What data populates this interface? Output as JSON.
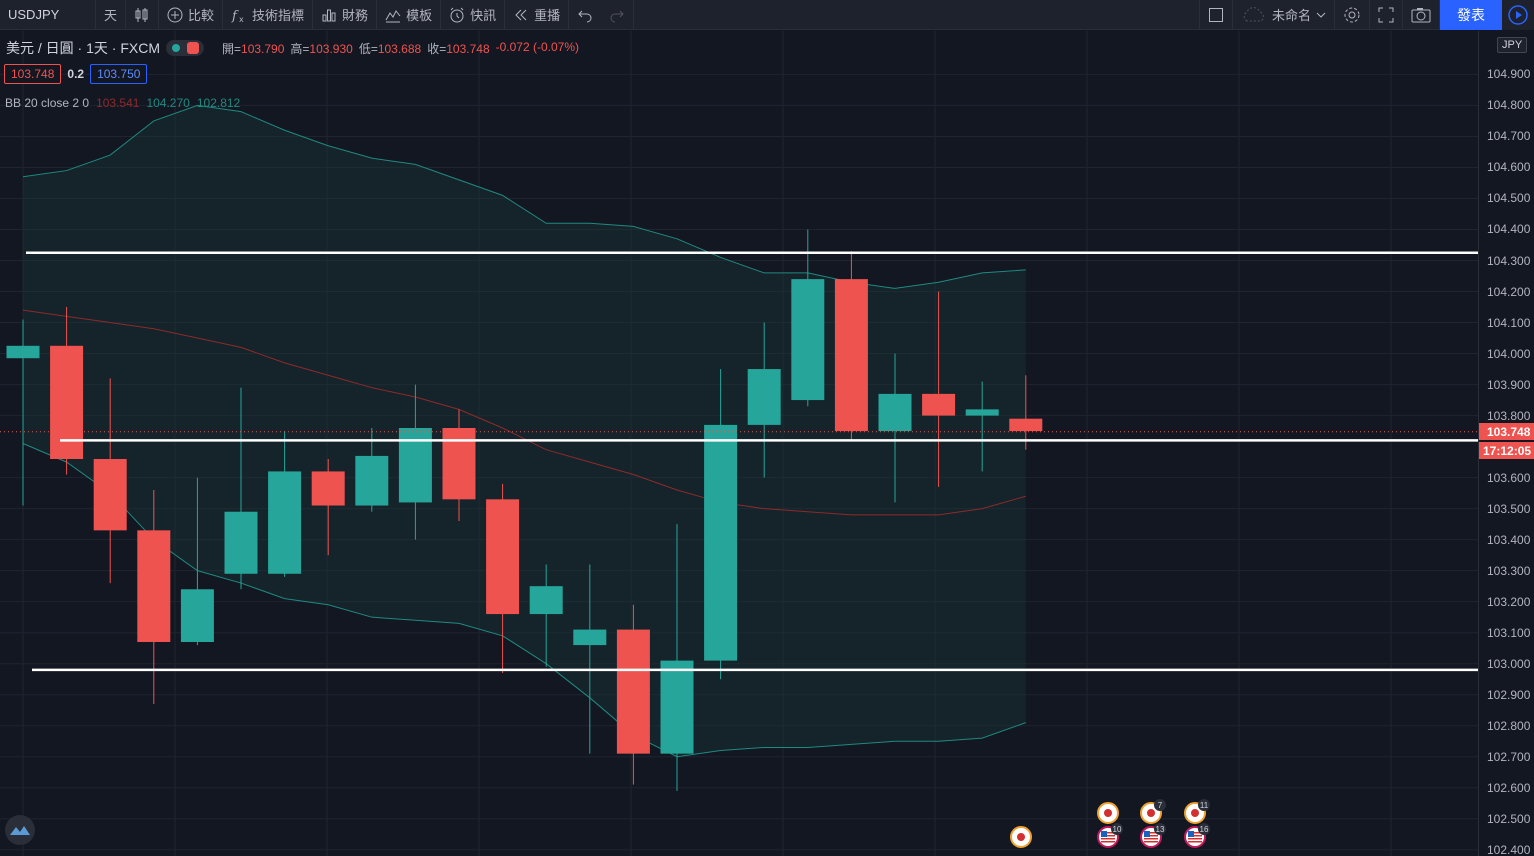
{
  "toolbar": {
    "symbol": "USDJPY",
    "interval": "天",
    "compare": "比較",
    "indicators": "技術指標",
    "financials": "財務",
    "templates": "模板",
    "alerts": "快訊",
    "replay": "重播",
    "layout_name": "未命名",
    "publish": "發表"
  },
  "legend": {
    "title": "美元 / 日圓 · 1天 · FXCM",
    "ohlc": [
      {
        "label": "開=",
        "value": "103.790"
      },
      {
        "label": "高=",
        "value": "103.930"
      },
      {
        "label": "低=",
        "value": "103.688"
      },
      {
        "label": "收=",
        "value": "103.748"
      }
    ],
    "change": "-0.072 (-0.07%)",
    "sell": "103.748",
    "spread": "0.2",
    "buy": "103.750",
    "indicator_name": "BB 20 close 2 0",
    "bb_basis": "103.541",
    "bb_upper": "104.270",
    "bb_lower": "102.812"
  },
  "price_axis": {
    "currency": "JPY",
    "current_price": "103.748",
    "countdown": "17:12:05",
    "ticks": [
      "104.900",
      "104.800",
      "104.700",
      "104.600",
      "104.500",
      "104.400",
      "104.300",
      "104.200",
      "104.100",
      "104.000",
      "103.900",
      "103.800",
      "103.600",
      "103.500",
      "103.400",
      "103.300",
      "103.200",
      "103.100",
      "103.000",
      "102.900",
      "102.800",
      "102.700",
      "102.600",
      "102.500",
      "102.400"
    ]
  },
  "colors": {
    "up": "#26a69a",
    "down": "#ef5350",
    "background": "#131722",
    "grid": "#1f2430",
    "bb_band": "#1f8a80",
    "bb_basis": "#8c2b2b",
    "hline": "#ffffff"
  },
  "chart_data": {
    "type": "candlestick",
    "ylim": [
      102.38,
      105.04
    ],
    "candles": [
      {
        "o": 103.985,
        "h": 104.11,
        "l": 103.51,
        "c": 104.025
      },
      {
        "o": 104.025,
        "h": 104.15,
        "l": 103.61,
        "c": 103.66
      },
      {
        "o": 103.66,
        "h": 103.92,
        "l": 103.26,
        "c": 103.43
      },
      {
        "o": 103.43,
        "h": 103.56,
        "l": 102.87,
        "c": 103.07
      },
      {
        "o": 103.07,
        "h": 103.6,
        "l": 103.06,
        "c": 103.24
      },
      {
        "o": 103.29,
        "h": 103.89,
        "l": 103.24,
        "c": 103.49
      },
      {
        "o": 103.29,
        "h": 103.75,
        "l": 103.28,
        "c": 103.62
      },
      {
        "o": 103.62,
        "h": 103.66,
        "l": 103.35,
        "c": 103.51
      },
      {
        "o": 103.51,
        "h": 103.76,
        "l": 103.49,
        "c": 103.67
      },
      {
        "o": 103.52,
        "h": 103.9,
        "l": 103.4,
        "c": 103.76
      },
      {
        "o": 103.76,
        "h": 103.82,
        "l": 103.46,
        "c": 103.53
      },
      {
        "o": 103.53,
        "h": 103.58,
        "l": 102.97,
        "c": 103.16
      },
      {
        "o": 103.16,
        "h": 103.32,
        "l": 102.99,
        "c": 103.25
      },
      {
        "o": 103.06,
        "h": 103.32,
        "l": 102.71,
        "c": 103.11
      },
      {
        "o": 103.11,
        "h": 103.19,
        "l": 102.61,
        "c": 102.71
      },
      {
        "o": 102.71,
        "h": 103.45,
        "l": 102.59,
        "c": 103.01
      },
      {
        "o": 103.01,
        "h": 103.95,
        "l": 102.95,
        "c": 103.77
      },
      {
        "o": 103.77,
        "h": 104.1,
        "l": 103.6,
        "c": 103.95
      },
      {
        "o": 103.85,
        "h": 104.4,
        "l": 103.83,
        "c": 104.24
      },
      {
        "o": 104.24,
        "h": 104.33,
        "l": 103.72,
        "c": 103.75
      },
      {
        "o": 103.75,
        "h": 104.0,
        "l": 103.52,
        "c": 103.87
      },
      {
        "o": 103.87,
        "h": 104.2,
        "l": 103.57,
        "c": 103.8
      },
      {
        "o": 103.8,
        "h": 103.91,
        "l": 103.62,
        "c": 103.82
      },
      {
        "o": 103.79,
        "h": 103.93,
        "l": 103.69,
        "c": 103.75
      }
    ],
    "bb_upper": [
      104.57,
      104.59,
      104.64,
      104.75,
      104.8,
      104.78,
      104.72,
      104.67,
      104.63,
      104.61,
      104.56,
      104.51,
      104.42,
      104.42,
      104.41,
      104.37,
      104.31,
      104.26,
      104.26,
      104.23,
      104.21,
      104.23,
      104.26,
      104.27
    ],
    "bb_basis": [
      104.14,
      104.12,
      104.1,
      104.08,
      104.05,
      104.02,
      103.97,
      103.93,
      103.89,
      103.86,
      103.82,
      103.76,
      103.69,
      103.65,
      103.61,
      103.56,
      103.52,
      103.5,
      103.49,
      103.48,
      103.48,
      103.48,
      103.5,
      103.54
    ],
    "bb_lower": [
      103.71,
      103.65,
      103.55,
      103.4,
      103.3,
      103.26,
      103.21,
      103.19,
      103.15,
      103.14,
      103.13,
      103.09,
      103.0,
      102.89,
      102.77,
      102.7,
      102.72,
      102.73,
      102.73,
      102.74,
      102.75,
      102.75,
      102.76,
      102.81
    ],
    "horizontal_lines": [
      104.325,
      103.72,
      102.98
    ]
  }
}
